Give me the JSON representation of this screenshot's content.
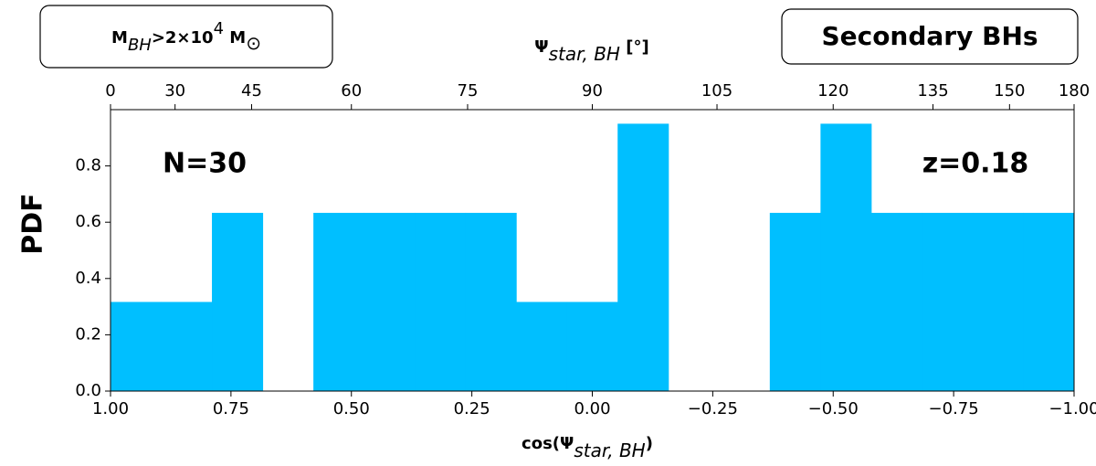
{
  "chart_data": {
    "type": "histogram",
    "xlabel": [
      "cos(Ψ",
      "star, BH",
      ")"
    ],
    "x2label": [
      "Ψ",
      "star, BH",
      " [°]"
    ],
    "ylabel": "PDF",
    "mass_label": [
      "M",
      "BH",
      ">2×10",
      "4",
      " M",
      "⊙"
    ],
    "sample_label": "Secondary BHs",
    "annotations": [
      "N=30",
      "z=0.18"
    ],
    "color": "#00bfff",
    "bins": [
      1,
      0.8947,
      0.7895,
      0.6842,
      0.5789,
      0.4737,
      0.3684,
      0.2632,
      0.1579,
      0.0526,
      -0.0526,
      -0.1579,
      -0.2632,
      -0.3684,
      -0.4737,
      -0.5789,
      -0.6842,
      -0.7895,
      -0.8947,
      -1
    ],
    "values": [
      0.3167,
      0.3167,
      0.6333,
      0,
      0.6333,
      0.6333,
      0.6333,
      0.6333,
      0.3167,
      0.3167,
      0.95,
      0,
      0,
      0.6333,
      0.95,
      0.6333,
      0.6333,
      0.6333,
      0.6333
    ],
    "xlim": [
      1,
      -1
    ],
    "xticks": [
      {
        "value": 1,
        "label": "1.00"
      },
      {
        "value": 0.75,
        "label": "0.75"
      },
      {
        "value": 0.5,
        "label": "0.50"
      },
      {
        "value": 0.25,
        "label": "0.25"
      },
      {
        "value": 0,
        "label": "0.00"
      },
      {
        "value": -0.25,
        "label": "−0.25"
      },
      {
        "value": -0.5,
        "label": "−0.50"
      },
      {
        "value": -0.75,
        "label": "−0.75"
      },
      {
        "value": -1,
        "label": "−1.00"
      }
    ],
    "x2ticks": [
      0,
      30,
      45,
      60,
      75,
      90,
      105,
      120,
      135,
      150,
      180
    ],
    "ylim": [
      0,
      1
    ],
    "yticks": [
      {
        "value": 0,
        "label": "0.0"
      },
      {
        "value": 0.2,
        "label": "0.2"
      },
      {
        "value": 0.4,
        "label": "0.4"
      },
      {
        "value": 0.6,
        "label": "0.6"
      },
      {
        "value": 0.8,
        "label": "0.8"
      }
    ]
  }
}
